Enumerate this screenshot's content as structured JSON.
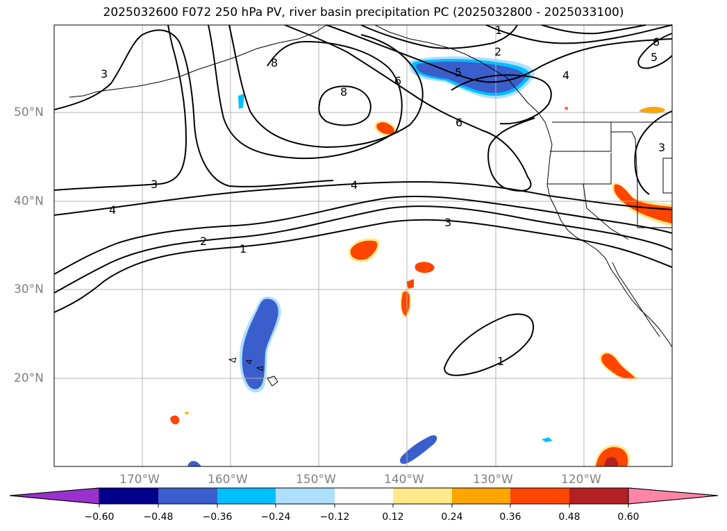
{
  "title": "2025032600 F072 250 hPa PV, river basin precipitation PC (2025032800 - 2025033100)",
  "lat_labels": [
    "50°N",
    "40°N",
    "30°N",
    "20°N"
  ],
  "lon_labels": [
    "170°W",
    "160°W",
    "150°W",
    "140°W",
    "130°W",
    "120°W"
  ],
  "colorbar": {
    "ticks": [
      "−0.60",
      "−0.48",
      "−0.36",
      "−0.24",
      "−0.12",
      "0.12",
      "0.24",
      "0.36",
      "0.48",
      "0.60"
    ],
    "colors": [
      "#9932CC",
      "#00008B",
      "#3A5FCD",
      "#00BFFF",
      "#ADDFFF",
      "#FFFFFF",
      "#FFE98A",
      "#FFA500",
      "#FF4500",
      "#B22222",
      "#FF85A8"
    ]
  },
  "contour_labels": [
    "1",
    "2",
    "3",
    "4",
    "5",
    "6",
    "8"
  ],
  "colors": {
    "grid": "#b0b0b0",
    "contour": "#000000",
    "coast": "#000000"
  }
}
